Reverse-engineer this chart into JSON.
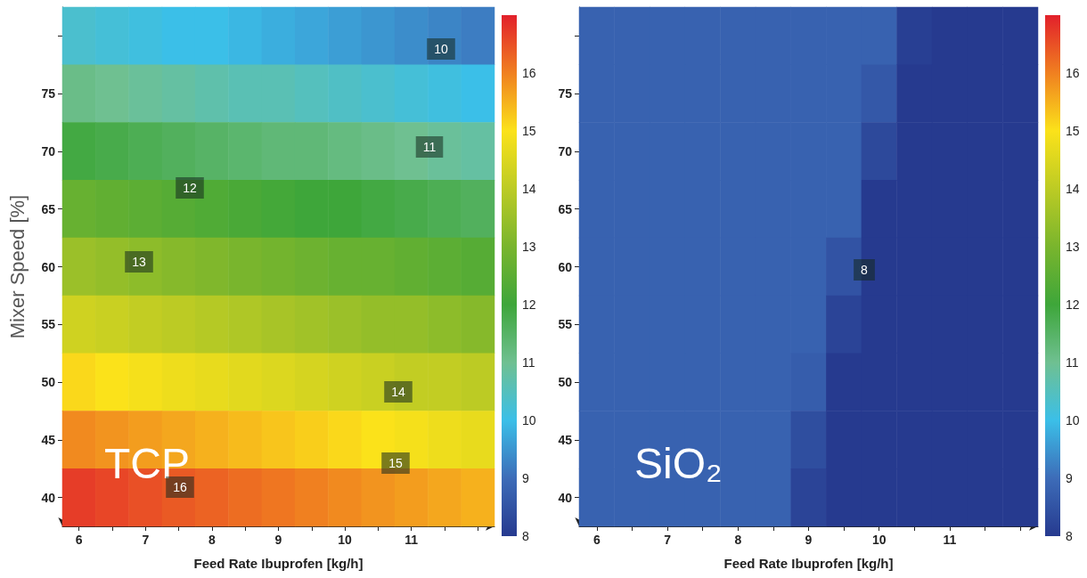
{
  "chart_data": [
    {
      "type": "heatmap",
      "xlabel": "Feed Rate Ibuprofen [kg/h]",
      "ylabel": "Mixer Speed [%]",
      "categories": [
        "6",
        null,
        "7",
        null,
        "8",
        null,
        "9",
        null,
        "10",
        null,
        "11",
        null,
        null
      ],
      "y_categories": [
        null,
        "75",
        "70",
        "65",
        "60",
        "55",
        "50",
        "45",
        "40"
      ],
      "clim": [
        8,
        17
      ],
      "cticks": [
        8,
        9,
        10,
        11,
        12,
        13,
        14,
        15,
        16
      ],
      "colors": [
        "#263a8f",
        "#3d6cb8",
        "#3bbfe8",
        "#6fc091",
        "#3ea63a",
        "#79b52d",
        "#bccb24",
        "#fbe21a",
        "#f08020",
        "#e2202b"
      ],
      "cells": [
        [
          10.3,
          10.2,
          10.1,
          10.0,
          10.0,
          9.9,
          9.8,
          9.7,
          9.6,
          9.5,
          9.4,
          9.3,
          9.2
        ],
        [
          11.1,
          11.0,
          10.9,
          10.8,
          10.7,
          10.6,
          10.6,
          10.5,
          10.4,
          10.3,
          10.2,
          10.1,
          10.0
        ],
        [
          11.9,
          11.8,
          11.7,
          11.6,
          11.5,
          11.4,
          11.3,
          11.3,
          11.2,
          11.1,
          11.0,
          10.9,
          10.8
        ],
        [
          12.7,
          12.6,
          12.5,
          12.4,
          12.3,
          12.2,
          12.1,
          12.0,
          12.0,
          11.9,
          11.8,
          11.7,
          11.6
        ],
        [
          13.5,
          13.4,
          13.3,
          13.2,
          13.1,
          13.0,
          12.9,
          12.8,
          12.7,
          12.7,
          12.6,
          12.5,
          12.4
        ],
        [
          14.3,
          14.2,
          14.1,
          14.0,
          13.9,
          13.8,
          13.7,
          13.6,
          13.5,
          13.4,
          13.4,
          13.3,
          13.2
        ],
        [
          15.1,
          15.0,
          14.9,
          14.8,
          14.7,
          14.6,
          14.5,
          14.4,
          14.3,
          14.2,
          14.1,
          14.1,
          14.0
        ],
        [
          15.9,
          15.8,
          15.7,
          15.6,
          15.5,
          15.4,
          15.3,
          15.2,
          15.1,
          15.0,
          14.9,
          14.8,
          14.7
        ],
        [
          16.7,
          16.6,
          16.5,
          16.4,
          16.3,
          16.2,
          16.1,
          16.0,
          15.9,
          15.8,
          15.7,
          15.6,
          15.5
        ]
      ],
      "annotations": [
        "TCP",
        "10",
        "11",
        "12",
        "13",
        "14",
        "15",
        "16"
      ]
    },
    {
      "type": "heatmap",
      "xlabel": "Feed Rate Ibuprofen [kg/h]",
      "categories": [
        "6",
        null,
        "7",
        null,
        "8",
        null,
        "9",
        null,
        "10",
        null,
        "11",
        null,
        null
      ],
      "y_categories": [
        null,
        "75",
        "70",
        "65",
        "60",
        "55",
        "50",
        "45",
        "40"
      ],
      "clim": [
        8,
        17
      ],
      "cticks": [
        8,
        9,
        10,
        11,
        12,
        13,
        14,
        15,
        16
      ],
      "colors": [
        "#263a8f",
        "#3d6cb8",
        "#3bbfe8",
        "#6fc091",
        "#3ea63a",
        "#79b52d",
        "#bccb24",
        "#fbe21a",
        "#f08020",
        "#e2202b"
      ],
      "cells": [
        [
          8.8,
          8.8,
          8.8,
          8.8,
          8.8,
          8.8,
          8.8,
          8.8,
          8.8,
          8.1,
          8.0,
          8.0,
          8.0
        ],
        [
          8.8,
          8.8,
          8.8,
          8.8,
          8.8,
          8.8,
          8.8,
          8.8,
          8.6,
          8.0,
          8.0,
          8.0,
          8.0
        ],
        [
          8.8,
          8.8,
          8.8,
          8.8,
          8.8,
          8.8,
          8.8,
          8.8,
          8.3,
          8.0,
          8.0,
          8.0,
          8.0
        ],
        [
          8.8,
          8.8,
          8.8,
          8.8,
          8.8,
          8.8,
          8.8,
          8.8,
          8.0,
          8.0,
          8.0,
          8.0,
          8.0
        ],
        [
          8.8,
          8.8,
          8.8,
          8.8,
          8.8,
          8.8,
          8.8,
          8.5,
          8.0,
          8.0,
          8.0,
          8.0,
          8.0
        ],
        [
          8.8,
          8.8,
          8.8,
          8.8,
          8.8,
          8.8,
          8.8,
          8.2,
          8.0,
          8.0,
          8.0,
          8.0,
          8.0
        ],
        [
          8.8,
          8.8,
          8.8,
          8.8,
          8.8,
          8.8,
          8.7,
          8.0,
          8.0,
          8.0,
          8.0,
          8.0,
          8.0
        ],
        [
          8.8,
          8.8,
          8.8,
          8.8,
          8.8,
          8.8,
          8.4,
          8.0,
          8.0,
          8.0,
          8.0,
          8.0,
          8.0
        ],
        [
          8.8,
          8.8,
          8.8,
          8.8,
          8.8,
          8.8,
          8.2,
          8.0,
          8.0,
          8.0,
          8.0,
          8.0,
          8.0
        ]
      ],
      "annotations": [
        "SiO₂",
        "8"
      ]
    }
  ]
}
